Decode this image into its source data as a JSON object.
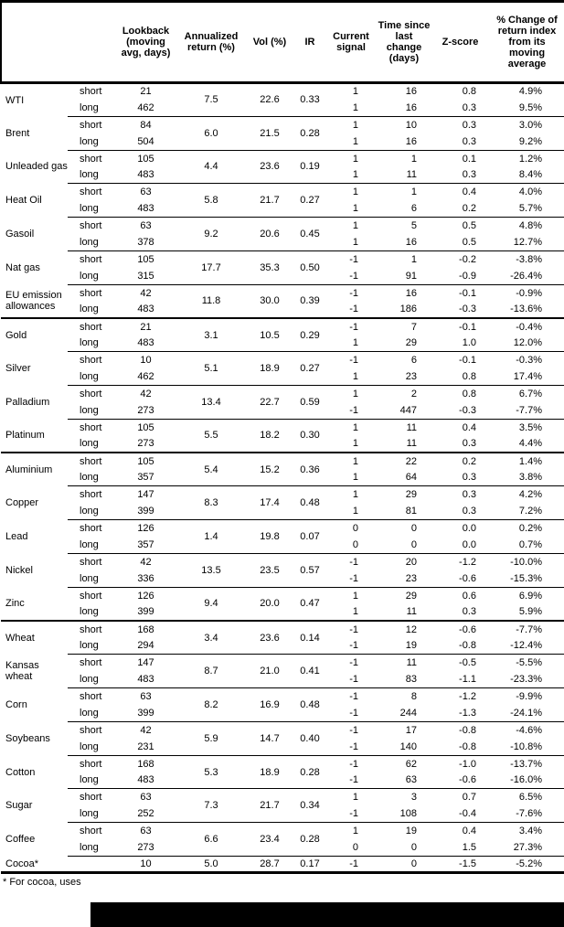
{
  "table": {
    "header": {
      "columns": [
        "",
        "",
        "Lookback\n(moving\navg, days)",
        "Annualized\nreturn (%)",
        "Vol (%)",
        "IR",
        "Current\nsignal",
        "Time since\nlast change\n(days)",
        "Z-score",
        "% Change of\nreturn index\nfrom its\nmoving\naverage"
      ]
    },
    "sections": [
      {
        "commodities": [
          {
            "name": "WTI",
            "annualized_return": "7.5",
            "vol": "22.6",
            "ir": "0.33",
            "rows": [
              {
                "side": "short",
                "lookback": "21",
                "signal": "1",
                "time_since": "16",
                "z_score": "0.8",
                "pct_change": "4.9%"
              },
              {
                "side": "long",
                "lookback": "462",
                "signal": "1",
                "time_since": "16",
                "z_score": "0.3",
                "pct_change": "9.5%"
              }
            ]
          },
          {
            "name": "Brent",
            "annualized_return": "6.0",
            "vol": "21.5",
            "ir": "0.28",
            "rows": [
              {
                "side": "short",
                "lookback": "84",
                "signal": "1",
                "time_since": "10",
                "z_score": "0.3",
                "pct_change": "3.0%"
              },
              {
                "side": "long",
                "lookback": "504",
                "signal": "1",
                "time_since": "16",
                "z_score": "0.3",
                "pct_change": "9.2%"
              }
            ]
          },
          {
            "name": "Unleaded gas",
            "annualized_return": "4.4",
            "vol": "23.6",
            "ir": "0.19",
            "rows": [
              {
                "side": "short",
                "lookback": "105",
                "signal": "1",
                "time_since": "1",
                "z_score": "0.1",
                "pct_change": "1.2%"
              },
              {
                "side": "long",
                "lookback": "483",
                "signal": "1",
                "time_since": "11",
                "z_score": "0.3",
                "pct_change": "8.4%"
              }
            ]
          },
          {
            "name": "Heat Oil",
            "annualized_return": "5.8",
            "vol": "21.7",
            "ir": "0.27",
            "rows": [
              {
                "side": "short",
                "lookback": "63",
                "signal": "1",
                "time_since": "1",
                "z_score": "0.4",
                "pct_change": "4.0%"
              },
              {
                "side": "long",
                "lookback": "483",
                "signal": "1",
                "time_since": "6",
                "z_score": "0.2",
                "pct_change": "5.7%"
              }
            ]
          },
          {
            "name": "Gasoil",
            "annualized_return": "9.2",
            "vol": "20.6",
            "ir": "0.45",
            "rows": [
              {
                "side": "short",
                "lookback": "63",
                "signal": "1",
                "time_since": "5",
                "z_score": "0.5",
                "pct_change": "4.8%"
              },
              {
                "side": "long",
                "lookback": "378",
                "signal": "1",
                "time_since": "16",
                "z_score": "0.5",
                "pct_change": "12.7%"
              }
            ]
          },
          {
            "name": "Nat gas",
            "annualized_return": "17.7",
            "vol": "35.3",
            "ir": "0.50",
            "rows": [
              {
                "side": "short",
                "lookback": "105",
                "signal": "-1",
                "time_since": "1",
                "z_score": "-0.2",
                "pct_change": "-3.8%"
              },
              {
                "side": "long",
                "lookback": "315",
                "signal": "-1",
                "time_since": "91",
                "z_score": "-0.9",
                "pct_change": "-26.4%"
              }
            ]
          },
          {
            "name": "EU emission allowances",
            "annualized_return": "11.8",
            "vol": "30.0",
            "ir": "0.39",
            "rows": [
              {
                "side": "short",
                "lookback": "42",
                "signal": "-1",
                "time_since": "16",
                "z_score": "-0.1",
                "pct_change": "-0.9%"
              },
              {
                "side": "long",
                "lookback": "483",
                "signal": "-1",
                "time_since": "186",
                "z_score": "-0.3",
                "pct_change": "-13.6%"
              }
            ]
          }
        ]
      },
      {
        "commodities": [
          {
            "name": "Gold",
            "annualized_return": "3.1",
            "vol": "10.5",
            "ir": "0.29",
            "rows": [
              {
                "side": "short",
                "lookback": "21",
                "signal": "-1",
                "time_since": "7",
                "z_score": "-0.1",
                "pct_change": "-0.4%"
              },
              {
                "side": "long",
                "lookback": "483",
                "signal": "1",
                "time_since": "29",
                "z_score": "1.0",
                "pct_change": "12.0%"
              }
            ]
          },
          {
            "name": "Silver",
            "annualized_return": "5.1",
            "vol": "18.9",
            "ir": "0.27",
            "rows": [
              {
                "side": "short",
                "lookback": "10",
                "signal": "-1",
                "time_since": "6",
                "z_score": "-0.1",
                "pct_change": "-0.3%"
              },
              {
                "side": "long",
                "lookback": "462",
                "signal": "1",
                "time_since": "23",
                "z_score": "0.8",
                "pct_change": "17.4%"
              }
            ]
          },
          {
            "name": "Palladium",
            "annualized_return": "13.4",
            "vol": "22.7",
            "ir": "0.59",
            "rows": [
              {
                "side": "short",
                "lookback": "42",
                "signal": "1",
                "time_since": "2",
                "z_score": "0.8",
                "pct_change": "6.7%"
              },
              {
                "side": "long",
                "lookback": "273",
                "signal": "-1",
                "time_since": "447",
                "z_score": "-0.3",
                "pct_change": "-7.7%"
              }
            ]
          },
          {
            "name": "Platinum",
            "annualized_return": "5.5",
            "vol": "18.2",
            "ir": "0.30",
            "rows": [
              {
                "side": "short",
                "lookback": "105",
                "signal": "1",
                "time_since": "11",
                "z_score": "0.4",
                "pct_change": "3.5%"
              },
              {
                "side": "long",
                "lookback": "273",
                "signal": "1",
                "time_since": "11",
                "z_score": "0.3",
                "pct_change": "4.4%"
              }
            ]
          }
        ]
      },
      {
        "commodities": [
          {
            "name": "Aluminium",
            "annualized_return": "5.4",
            "vol": "15.2",
            "ir": "0.36",
            "rows": [
              {
                "side": "short",
                "lookback": "105",
                "signal": "1",
                "time_since": "22",
                "z_score": "0.2",
                "pct_change": "1.4%"
              },
              {
                "side": "long",
                "lookback": "357",
                "signal": "1",
                "time_since": "64",
                "z_score": "0.3",
                "pct_change": "3.8%"
              }
            ]
          },
          {
            "name": "Copper",
            "annualized_return": "8.3",
            "vol": "17.4",
            "ir": "0.48",
            "rows": [
              {
                "side": "short",
                "lookback": "147",
                "signal": "1",
                "time_since": "29",
                "z_score": "0.3",
                "pct_change": "4.2%"
              },
              {
                "side": "long",
                "lookback": "399",
                "signal": "1",
                "time_since": "81",
                "z_score": "0.3",
                "pct_change": "7.2%"
              }
            ]
          },
          {
            "name": "Lead",
            "annualized_return": "1.4",
            "vol": "19.8",
            "ir": "0.07",
            "rows": [
              {
                "side": "short",
                "lookback": "126",
                "signal": "0",
                "time_since": "0",
                "z_score": "0.0",
                "pct_change": "0.2%"
              },
              {
                "side": "long",
                "lookback": "357",
                "signal": "0",
                "time_since": "0",
                "z_score": "0.0",
                "pct_change": "0.7%"
              }
            ]
          },
          {
            "name": "Nickel",
            "annualized_return": "13.5",
            "vol": "23.5",
            "ir": "0.57",
            "rows": [
              {
                "side": "short",
                "lookback": "42",
                "signal": "-1",
                "time_since": "20",
                "z_score": "-1.2",
                "pct_change": "-10.0%"
              },
              {
                "side": "long",
                "lookback": "336",
                "signal": "-1",
                "time_since": "23",
                "z_score": "-0.6",
                "pct_change": "-15.3%"
              }
            ]
          },
          {
            "name": "Zinc",
            "annualized_return": "9.4",
            "vol": "20.0",
            "ir": "0.47",
            "rows": [
              {
                "side": "short",
                "lookback": "126",
                "signal": "1",
                "time_since": "29",
                "z_score": "0.6",
                "pct_change": "6.9%"
              },
              {
                "side": "long",
                "lookback": "399",
                "signal": "1",
                "time_since": "11",
                "z_score": "0.3",
                "pct_change": "5.9%"
              }
            ]
          }
        ]
      },
      {
        "commodities": [
          {
            "name": "Wheat",
            "annualized_return": "3.4",
            "vol": "23.6",
            "ir": "0.14",
            "rows": [
              {
                "side": "short",
                "lookback": "168",
                "signal": "-1",
                "time_since": "12",
                "z_score": "-0.6",
                "pct_change": "-7.7%"
              },
              {
                "side": "long",
                "lookback": "294",
                "signal": "-1",
                "time_since": "19",
                "z_score": "-0.8",
                "pct_change": "-12.4%"
              }
            ]
          },
          {
            "name": "Kansas wheat",
            "annualized_return": "8.7",
            "vol": "21.0",
            "ir": "0.41",
            "rows": [
              {
                "side": "short",
                "lookback": "147",
                "signal": "-1",
                "time_since": "11",
                "z_score": "-0.5",
                "pct_change": "-5.5%"
              },
              {
                "side": "long",
                "lookback": "483",
                "signal": "-1",
                "time_since": "83",
                "z_score": "-1.1",
                "pct_change": "-23.3%"
              }
            ]
          },
          {
            "name": "Corn",
            "annualized_return": "8.2",
            "vol": "16.9",
            "ir": "0.48",
            "rows": [
              {
                "side": "short",
                "lookback": "63",
                "signal": "-1",
                "time_since": "8",
                "z_score": "-1.2",
                "pct_change": "-9.9%"
              },
              {
                "side": "long",
                "lookback": "399",
                "signal": "-1",
                "time_since": "244",
                "z_score": "-1.3",
                "pct_change": "-24.1%"
              }
            ]
          },
          {
            "name": "Soybeans",
            "annualized_return": "5.9",
            "vol": "14.7",
            "ir": "0.40",
            "rows": [
              {
                "side": "short",
                "lookback": "42",
                "signal": "-1",
                "time_since": "17",
                "z_score": "-0.8",
                "pct_change": "-4.6%"
              },
              {
                "side": "long",
                "lookback": "231",
                "signal": "-1",
                "time_since": "140",
                "z_score": "-0.8",
                "pct_change": "-10.8%"
              }
            ]
          },
          {
            "name": "Cotton",
            "annualized_return": "5.3",
            "vol": "18.9",
            "ir": "0.28",
            "rows": [
              {
                "side": "short",
                "lookback": "168",
                "signal": "-1",
                "time_since": "62",
                "z_score": "-1.0",
                "pct_change": "-13.7%"
              },
              {
                "side": "long",
                "lookback": "483",
                "signal": "-1",
                "time_since": "63",
                "z_score": "-0.6",
                "pct_change": "-16.0%"
              }
            ]
          },
          {
            "name": "Sugar",
            "annualized_return": "7.3",
            "vol": "21.7",
            "ir": "0.34",
            "rows": [
              {
                "side": "short",
                "lookback": "63",
                "signal": "1",
                "time_since": "3",
                "z_score": "0.7",
                "pct_change": "6.5%"
              },
              {
                "side": "long",
                "lookback": "252",
                "signal": "-1",
                "time_since": "108",
                "z_score": "-0.4",
                "pct_change": "-7.6%"
              }
            ]
          },
          {
            "name": "Coffee",
            "annualized_return": "6.6",
            "vol": "23.4",
            "ir": "0.28",
            "rows": [
              {
                "side": "short",
                "lookback": "63",
                "signal": "1",
                "time_since": "19",
                "z_score": "0.4",
                "pct_change": "3.4%"
              },
              {
                "side": "long",
                "lookback": "273",
                "signal": "0",
                "time_since": "0",
                "z_score": "1.5",
                "pct_change": "27.3%"
              }
            ]
          },
          {
            "name": "Cocoa*",
            "annualized_return": "5.0",
            "vol": "28.7",
            "ir": "0.17",
            "rows": [
              {
                "side": "",
                "lookback": "10",
                "signal": "-1",
                "time_since": "0",
                "z_score": "-1.5",
                "pct_change": "-5.2%"
              }
            ]
          }
        ]
      }
    ]
  },
  "footnote": {
    "text": "* For cocoa, uses"
  },
  "colors": {
    "border": "#000000",
    "text": "#000000",
    "background": "#ffffff",
    "redaction": "#000000"
  }
}
